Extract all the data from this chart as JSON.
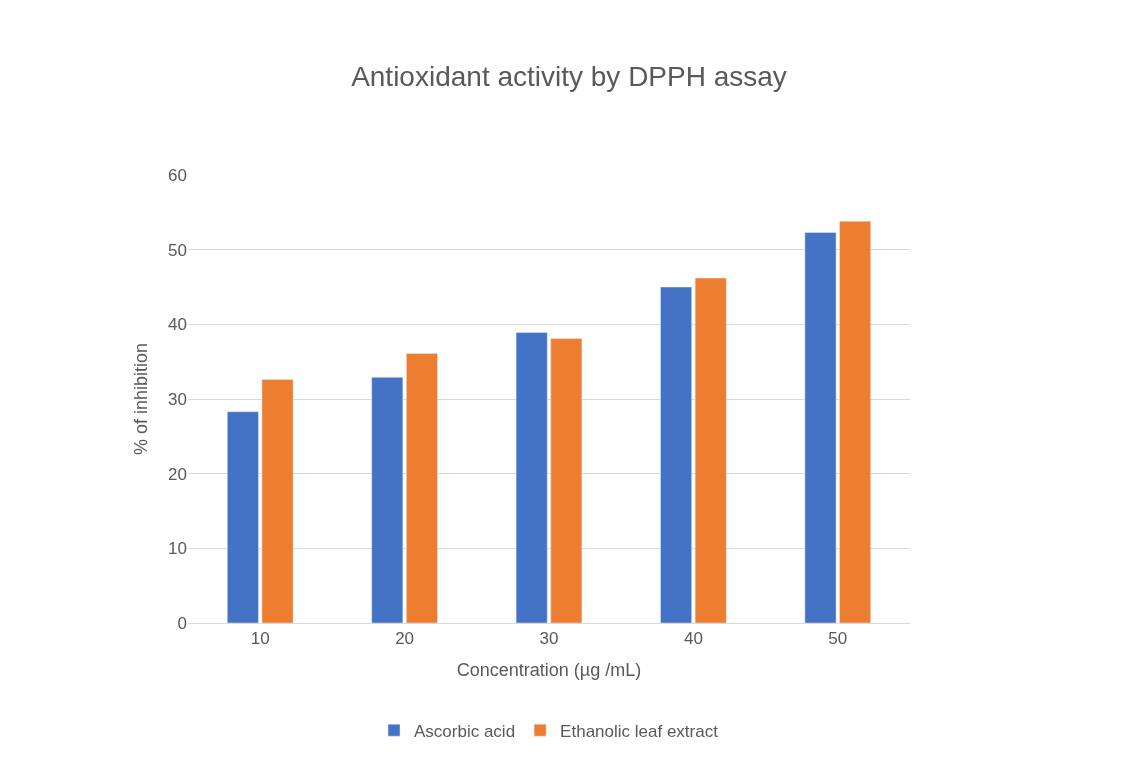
{
  "chart_data": {
    "type": "bar",
    "title": "Antioxidant activity by DPPH assay",
    "xlabel": "Concentration (µg /mL)",
    "ylabel": "% of inhibition",
    "categories": [
      "10",
      "20",
      "30",
      "40",
      "50"
    ],
    "series": [
      {
        "name": "Ascorbic acid",
        "color": "#4472c4",
        "values": [
          28.3,
          32.9,
          38.9,
          45.0,
          52.3
        ]
      },
      {
        "name": "Ethanolic leaf extract",
        "color": "#ed7d31",
        "values": [
          32.6,
          36.1,
          38.1,
          46.2,
          53.8
        ]
      }
    ],
    "ylim": [
      0,
      60
    ],
    "yticks": [
      0,
      10,
      20,
      30,
      40,
      50,
      60
    ],
    "grid": "y",
    "legend": "bottom"
  }
}
